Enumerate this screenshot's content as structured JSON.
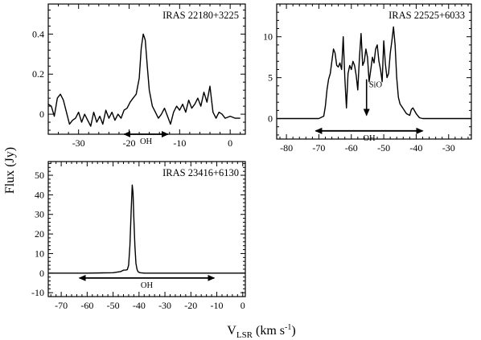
{
  "figure": {
    "ylabel": "Flux (Jy)",
    "xlabel_main": "V",
    "xlabel_sub": "LSR",
    "xlabel_units_pre": " (km s",
    "xlabel_units_sup": "-1",
    "xlabel_units_post": ")"
  },
  "chart_data": [
    {
      "type": "line",
      "title": "IRAS 22180+3225",
      "xlim": [
        -36,
        3
      ],
      "ylim": [
        -0.1,
        0.55
      ],
      "xticks": [
        -30,
        -20,
        -10,
        0
      ],
      "yticks": [
        0,
        0.2,
        0.4
      ],
      "ytick_labels": [
        "0",
        "0.2",
        "0.4"
      ],
      "series": [
        {
          "x": [
            -36,
            -35.4,
            -34.8,
            -34.2,
            -33.6,
            -33,
            -32.4,
            -31.8,
            -31.2,
            -30.6,
            -30,
            -29.4,
            -28.8,
            -28.2,
            -27.6,
            -27,
            -26.4,
            -25.8,
            -25.2,
            -24.6,
            -24,
            -23.4,
            -22.8,
            -22.2,
            -21.6,
            -21,
            -20.4,
            -19.8,
            -19.2,
            -18.6,
            -18,
            -17.6,
            -17.2,
            -16.8,
            -16.4,
            -16,
            -15.4,
            -14.8,
            -14.2,
            -13.6,
            -13,
            -12.4,
            -11.8,
            -11.2,
            -10.6,
            -10,
            -9.4,
            -8.8,
            -8.2,
            -7.6,
            -7,
            -6.4,
            -5.8,
            -5.2,
            -4.6,
            -4,
            -3.4,
            -2.8,
            -2.2,
            -1.6,
            -1,
            0,
            1,
            2
          ],
          "y": [
            0.05,
            0.04,
            -0.01,
            0.08,
            0.1,
            0.07,
            0.01,
            -0.05,
            -0.03,
            -0.02,
            0.01,
            -0.04,
            0.0,
            -0.03,
            -0.06,
            0.01,
            -0.04,
            -0.01,
            -0.05,
            0.02,
            -0.02,
            0.01,
            -0.03,
            0.0,
            -0.02,
            0.02,
            0.03,
            0.06,
            0.08,
            0.1,
            0.18,
            0.33,
            0.4,
            0.37,
            0.24,
            0.12,
            0.04,
            0.01,
            -0.02,
            0.0,
            0.03,
            -0.01,
            -0.05,
            0.01,
            0.04,
            0.02,
            0.05,
            0.01,
            0.07,
            0.03,
            0.05,
            0.08,
            0.04,
            0.11,
            0.06,
            0.14,
            0.01,
            -0.02,
            0.01,
            0.0,
            -0.02,
            -0.01,
            -0.02,
            -0.02
          ]
        }
      ],
      "annotations": [
        {
          "text": "OH",
          "x_range": [
            -21,
            -12.3
          ],
          "y": -0.1,
          "type": "double-arrow"
        }
      ]
    },
    {
      "type": "line",
      "title": "IRAS 22525+6033",
      "xlim": [
        -83,
        -23
      ],
      "ylim": [
        -2.5,
        14
      ],
      "xticks": [
        -80,
        -70,
        -60,
        -50,
        -40,
        -30
      ],
      "yticks": [
        0,
        5,
        10
      ],
      "ytick_labels": [
        "0",
        "5",
        "10"
      ],
      "series": [
        {
          "x": [
            -83,
            -75,
            -70,
            -68.5,
            -68,
            -67.5,
            -67,
            -66.5,
            -65.5,
            -65,
            -64.5,
            -64,
            -63.5,
            -63,
            -62.5,
            -62,
            -61.5,
            -61,
            -60.5,
            -60,
            -59.5,
            -59,
            -58.5,
            -58,
            -57.5,
            -57,
            -56.5,
            -56,
            -55.5,
            -55,
            -54.5,
            -54,
            -53.5,
            -53,
            -52.5,
            -52,
            -51.5,
            -51,
            -50.5,
            -50,
            -49.5,
            -49,
            -48.5,
            -48,
            -47.5,
            -47,
            -46.5,
            -46,
            -45.5,
            -45,
            -44,
            -43,
            -42,
            -41.5,
            -41,
            -40,
            -39,
            -38,
            -30,
            -23
          ],
          "y": [
            0,
            0,
            0,
            0.3,
            1.5,
            3.5,
            4.8,
            5.5,
            8.5,
            8,
            6.5,
            6.3,
            6.8,
            6,
            10,
            5,
            1.3,
            5.5,
            6.5,
            6,
            7,
            6.5,
            5.3,
            3.5,
            7.5,
            10.4,
            6.5,
            7,
            8.5,
            7.5,
            4.5,
            6,
            7.5,
            6.8,
            8.5,
            9,
            7,
            6,
            4.5,
            9.5,
            6.7,
            5,
            5.5,
            8,
            9.5,
            11.2,
            9,
            5,
            2.6,
            1.8,
            1.2,
            0.6,
            0.4,
            1.1,
            1.3,
            0.6,
            0.1,
            0,
            0,
            0
          ]
        }
      ],
      "annotations": [
        {
          "text": "OH",
          "x_range": [
            -71,
            -38
          ],
          "y": -1.5,
          "type": "double-arrow"
        },
        {
          "text": "SiO",
          "x": -55.3,
          "y_from": 4.8,
          "y_to": 0.4,
          "type": "down-arrow"
        }
      ]
    },
    {
      "type": "line",
      "title": "IRAS 23416+6130",
      "xlim": [
        -75,
        1
      ],
      "ylim": [
        -12,
        57
      ],
      "xticks": [
        -70,
        -60,
        -50,
        -40,
        -30,
        -20,
        -10,
        0
      ],
      "yticks": [
        -10,
        0,
        10,
        20,
        30,
        40,
        50
      ],
      "ytick_labels": [
        "-10",
        "0",
        "10",
        "20",
        "30",
        "40",
        "50"
      ],
      "series": [
        {
          "x": [
            -75,
            -60,
            -50,
            -47,
            -46,
            -45,
            -44.5,
            -44,
            -43.5,
            -43,
            -42.6,
            -42.3,
            -42,
            -41.6,
            -41.2,
            -40.8,
            -40.4,
            -40,
            -39.5,
            -38,
            -30,
            -20,
            -10,
            0,
            1
          ],
          "y": [
            0,
            0,
            0.2,
            0.8,
            1.5,
            1.6,
            1.8,
            4,
            14,
            33,
            45,
            41,
            28,
            14,
            5,
            2,
            0.8,
            0.4,
            0.2,
            0,
            0,
            0,
            0,
            0,
            0
          ]
        }
      ],
      "annotations": [
        {
          "text": "OH",
          "x_range": [
            -63,
            -11
          ],
          "y": -2.5,
          "type": "double-arrow"
        }
      ]
    }
  ]
}
